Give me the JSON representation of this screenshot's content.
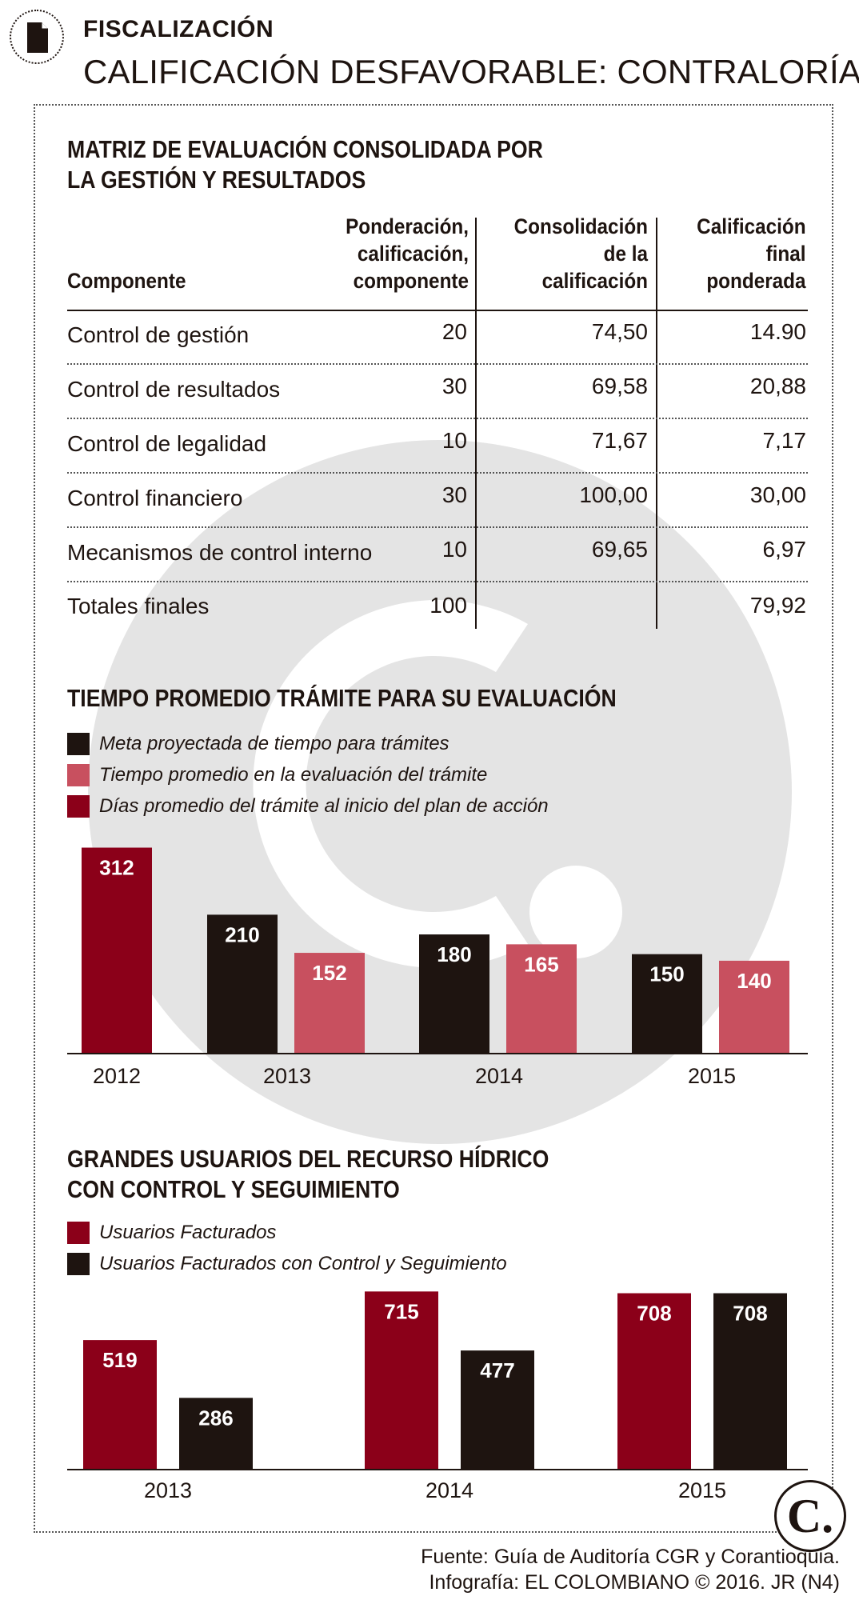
{
  "header": {
    "kicker": "FISCALIZACIÓN",
    "headline": "CALIFICACIÓN DESFAVORABLE: CONTRALORÍA"
  },
  "colors": {
    "crimson": "#8b0019",
    "black": "#1e1410",
    "pink": "#c8505f",
    "watermark": "#e4e4e4"
  },
  "table": {
    "title_line1": "MATRIZ DE EVALUACIÓN CONSOLIDADA POR",
    "title_line2": "LA GESTIÓN Y RESULTADOS",
    "col_componente": "Componente",
    "col_ponderacion": [
      "Ponderación,",
      "calificación,",
      "componente"
    ],
    "col_consolidacion": [
      "Consolidación",
      "de la",
      "calificación"
    ],
    "col_calificacion": [
      "Calificación",
      "final",
      "ponderada"
    ],
    "rows": [
      {
        "componente": "Control de gestión",
        "ponderacion": "20",
        "consolidacion": "74,50",
        "calificacion": "14.90"
      },
      {
        "componente": "Control de resultados",
        "ponderacion": "30",
        "consolidacion": "69,58",
        "calificacion": "20,88"
      },
      {
        "componente": "Control de legalidad",
        "ponderacion": "10",
        "consolidacion": "71,67",
        "calificacion": "7,17"
      },
      {
        "componente": "Control financiero",
        "ponderacion": "30",
        "consolidacion": "100,00",
        "calificacion": "30,00"
      },
      {
        "componente": "Mecanismos de control interno",
        "ponderacion": "10",
        "consolidacion": "69,65",
        "calificacion": "6,97"
      },
      {
        "componente": "Totales finales",
        "ponderacion": "100",
        "consolidacion": "",
        "calificacion": "79,92"
      }
    ]
  },
  "chart_data": [
    {
      "type": "bar",
      "title": "TIEMPO PROMEDIO TRÁMITE PARA SU EVALUACIÓN",
      "categories": [
        "2012",
        "2013",
        "2014",
        "2015"
      ],
      "series": [
        {
          "name": "Meta proyectada de tiempo para trámites",
          "color": "#1e1410",
          "values": [
            null,
            210,
            180,
            150
          ]
        },
        {
          "name": "Tiempo promedio en la evaluación del trámite",
          "color": "#c8505f",
          "values": [
            null,
            152,
            165,
            140
          ]
        },
        {
          "name": "Días promedio del trámite al inicio del plan de acción",
          "color": "#8b0019",
          "values": [
            312,
            null,
            null,
            null
          ]
        }
      ],
      "xlabel": "",
      "ylabel": "",
      "grid": false,
      "legend": "top-left"
    },
    {
      "type": "bar",
      "title": "GRANDES USUARIOS DEL RECURSO HÍDRICO CON CONTROL Y SEGUIMIENTO",
      "title_line1": "GRANDES USUARIOS DEL RECURSO HÍDRICO",
      "title_line2": "CON CONTROL Y SEGUIMIENTO",
      "categories": [
        "2013",
        "2014",
        "2015"
      ],
      "series": [
        {
          "name": "Usuarios Facturados",
          "color": "#8b0019",
          "values": [
            519,
            715,
            708
          ]
        },
        {
          "name": "Usuarios Facturados con Control y Seguimiento",
          "color": "#1e1410",
          "values": [
            286,
            477,
            708
          ]
        }
      ],
      "xlabel": "",
      "ylabel": "",
      "grid": false,
      "legend": "top-left"
    }
  ],
  "footer": {
    "source": "Fuente: Guía de Auditoría CGR y Corantioquia.",
    "credit": "Infografía: EL COLOMBIANO © 2016. JR (N4)",
    "logo_letter": "C."
  }
}
